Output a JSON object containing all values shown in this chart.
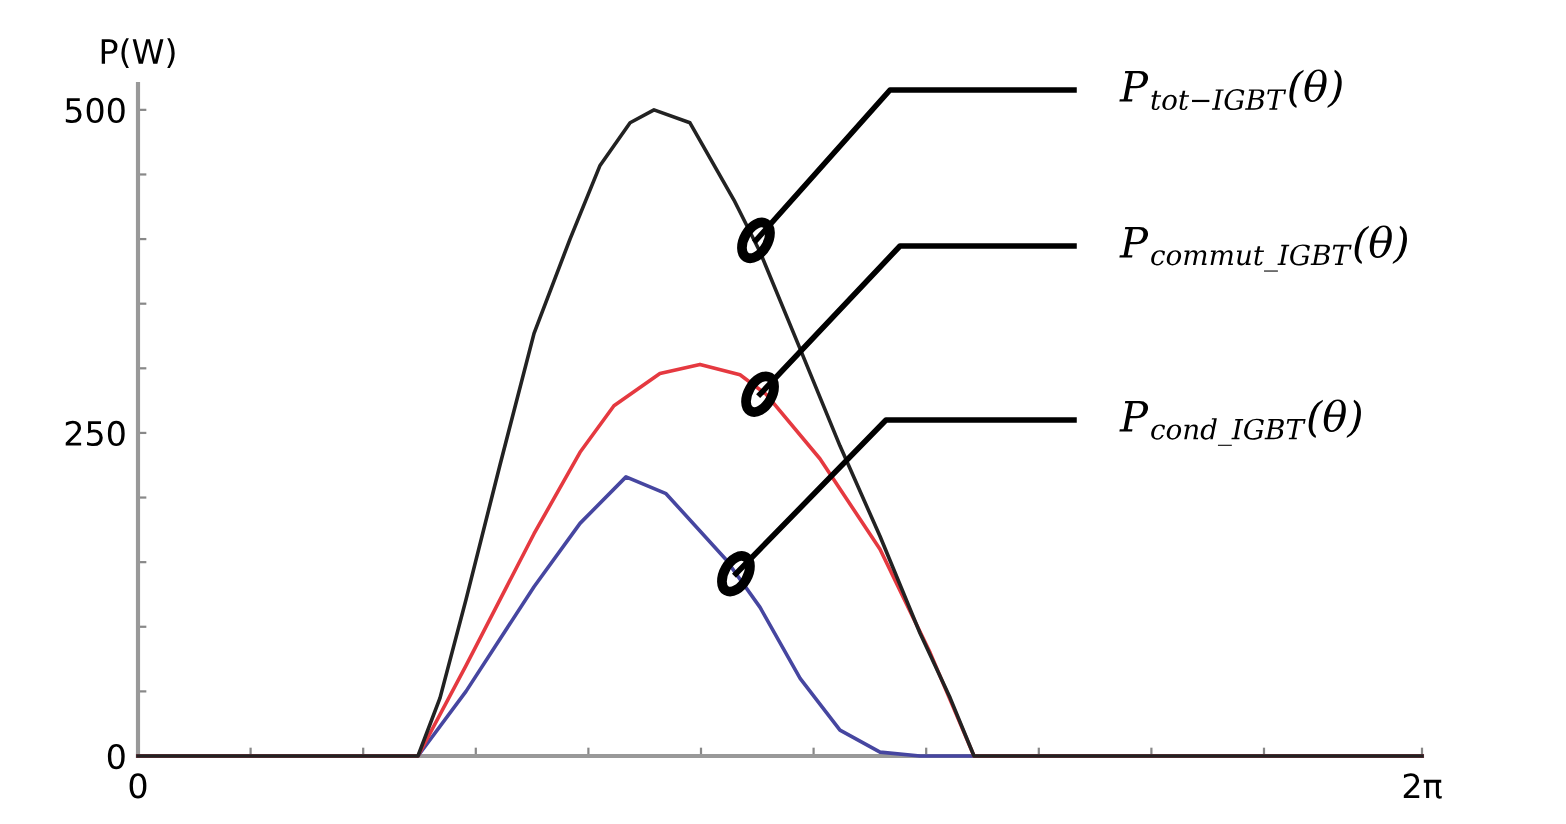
{
  "chart_data": {
    "type": "line",
    "ylabel": "P(W)",
    "xlim": [
      0,
      6.2832
    ],
    "ylim": [
      0,
      520
    ],
    "xticks": [
      {
        "value": 0,
        "label": "0"
      },
      {
        "value": 0.551,
        "label": null
      },
      {
        "value": 1.102,
        "label": null
      },
      {
        "value": 1.653,
        "label": null
      },
      {
        "value": 2.204,
        "label": null
      },
      {
        "value": 2.755,
        "label": null
      },
      {
        "value": 3.306,
        "label": null
      },
      {
        "value": 3.857,
        "label": null
      },
      {
        "value": 4.408,
        "label": null
      },
      {
        "value": 4.959,
        "label": null
      },
      {
        "value": 5.51,
        "label": null
      },
      {
        "value": 6.2832,
        "label": "2π"
      }
    ],
    "yticks": [
      0,
      {
        "value": 50,
        "label": null
      },
      {
        "value": 100,
        "label": null
      },
      {
        "value": 150,
        "label": null
      },
      {
        "value": 200,
        "label": null
      },
      250,
      {
        "value": 300,
        "label": null
      },
      {
        "value": 350,
        "label": null
      },
      {
        "value": 400,
        "label": null
      },
      {
        "value": 450,
        "label": null
      },
      500
    ],
    "grid": false,
    "legend": false,
    "marker": "none",
    "line_style": "solid",
    "series": [
      {
        "color": "#222222",
        "x": [
          0,
          1.37,
          1.478,
          1.605,
          1.771,
          1.938,
          2.114,
          2.261,
          2.408,
          2.525,
          2.701,
          2.917,
          3.044,
          3.24,
          3.435,
          3.631,
          3.827,
          3.974,
          4.091,
          6.2832
        ],
        "values": [
          0,
          0,
          45,
          121,
          225,
          327,
          400,
          457,
          490,
          500,
          490,
          430,
          390,
          315,
          240,
          170,
          95,
          45,
          0,
          0
        ]
      },
      {
        "color": "#e53940",
        "x": [
          0,
          1.37,
          1.605,
          1.938,
          2.163,
          2.329,
          2.554,
          2.75,
          2.946,
          3.073,
          3.337,
          3.631,
          3.876,
          4.091,
          6.2832
        ],
        "values": [
          0,
          0,
          70,
          172,
          235,
          271,
          296,
          303,
          295,
          280,
          230,
          160,
          80,
          0,
          0
        ]
      },
      {
        "color": "#4646a0",
        "x": [
          0,
          1.37,
          1.605,
          1.938,
          2.163,
          2.388,
          2.584,
          2.877,
          3.044,
          3.24,
          3.435,
          3.631,
          3.827,
          6.2832
        ],
        "values": [
          0,
          0,
          50,
          131,
          180,
          216,
          203,
          152,
          115,
          60,
          20,
          3,
          0,
          0
        ]
      }
    ],
    "annotations": [
      {
        "text": "P$_{tot−IGBT}$(θ)",
        "x": 3.024,
        "y": 399
      },
      {
        "text": "P$_{commut_IGBT}$(θ)",
        "x": 3.044,
        "y": 280
      },
      {
        "text": "P$_{cond_IGBT}$(θ)",
        "x": 2.926,
        "y": 141
      }
    ]
  }
}
